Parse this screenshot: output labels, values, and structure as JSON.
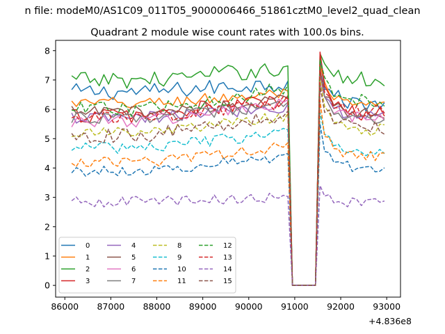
{
  "figure": {
    "suptitle": "n file: modeM0/AS1C09_011T05_9000006466_51861cztM0_level2_quad_clean",
    "x_offset_label": "+4.836e8"
  },
  "chart_data": {
    "type": "line",
    "title": "Quadrant 2 module wise count rates with 100.0s bins.",
    "xlabel": "",
    "ylabel": "",
    "xlim": [
      85800,
      93300
    ],
    "ylim": [
      -0.4,
      8.35
    ],
    "x_offset": 483600000,
    "xticks": [
      86000,
      87000,
      88000,
      89000,
      90000,
      91000,
      92000,
      93000
    ],
    "xtick_labels": [
      "86000",
      "87000",
      "88000",
      "89000",
      "90000",
      "91000",
      "92000",
      "93000"
    ],
    "yticks": [
      0,
      1,
      2,
      3,
      4,
      5,
      6,
      7,
      8
    ],
    "ytick_labels": [
      "0",
      "1",
      "2",
      "3",
      "4",
      "5",
      "6",
      "7",
      "8"
    ],
    "grid": false,
    "legend_position": "lower-left",
    "legend_columns": 4,
    "segment_1": {
      "x_start": 86150,
      "x_end": 90850,
      "step": 100
    },
    "segment_2": {
      "x_start": 91550,
      "x_end": 92950,
      "step": 100
    },
    "gap": {
      "x": [
        90950,
        91050,
        91150,
        91250,
        91350,
        91450
      ],
      "value": 0
    },
    "series": [
      {
        "name": "0",
        "color": "#1f77b4",
        "dash": "solid",
        "base": 6.6,
        "trend": 0.3,
        "amp": 0.28,
        "post_start": 7.7,
        "post_base": 6.2
      },
      {
        "name": "1",
        "color": "#ff7f0e",
        "dash": "solid",
        "base": 6.2,
        "trend": 0.35,
        "amp": 0.22,
        "post_start": 7.5,
        "post_base": 6.1
      },
      {
        "name": "2",
        "color": "#2ca02c",
        "dash": "solid",
        "base": 7.0,
        "trend": 0.4,
        "amp": 0.28,
        "post_start": 7.9,
        "post_base": 7.0
      },
      {
        "name": "3",
        "color": "#d62728",
        "dash": "solid",
        "base": 5.8,
        "trend": 0.55,
        "amp": 0.28,
        "post_start": 7.95,
        "post_base": 5.8
      },
      {
        "name": "4",
        "color": "#9467bd",
        "dash": "solid",
        "base": 5.7,
        "trend": 0.4,
        "amp": 0.22,
        "post_start": 7.3,
        "post_base": 5.8
      },
      {
        "name": "5",
        "color": "#8c564b",
        "dash": "solid",
        "base": 5.9,
        "trend": 0.4,
        "amp": 0.22,
        "post_start": 7.4,
        "post_base": 5.9
      },
      {
        "name": "6",
        "color": "#e377c2",
        "dash": "solid",
        "base": 5.6,
        "trend": 0.6,
        "amp": 0.22,
        "post_start": 6.9,
        "post_base": 5.7
      },
      {
        "name": "7",
        "color": "#7f7f7f",
        "dash": "solid",
        "base": 5.7,
        "trend": 0.45,
        "amp": 0.2,
        "post_start": 7.2,
        "post_base": 5.6
      },
      {
        "name": "8",
        "color": "#bcbd22",
        "dash": "dashed",
        "base": 5.2,
        "trend": 0.55,
        "amp": 0.2,
        "post_start": 7.0,
        "post_base": 5.3
      },
      {
        "name": "9",
        "color": "#17becf",
        "dash": "dashed",
        "base": 4.7,
        "trend": 0.5,
        "amp": 0.2,
        "post_start": 5.9,
        "post_base": 4.6
      },
      {
        "name": "10",
        "color": "#1f77b4",
        "dash": "dashed",
        "base": 3.9,
        "trend": 0.5,
        "amp": 0.18,
        "post_start": 5.5,
        "post_base": 4.0
      },
      {
        "name": "11",
        "color": "#ff7f0e",
        "dash": "dashed",
        "base": 4.2,
        "trend": 0.55,
        "amp": 0.18,
        "post_start": 6.3,
        "post_base": 4.4
      },
      {
        "name": "12",
        "color": "#2ca02c",
        "dash": "dashed",
        "base": 6.0,
        "trend": 0.7,
        "amp": 0.25,
        "post_start": 7.7,
        "post_base": 6.3
      },
      {
        "name": "13",
        "color": "#d62728",
        "dash": "dashed",
        "base": 5.7,
        "trend": 0.55,
        "amp": 0.22,
        "post_start": 7.3,
        "post_base": 5.9
      },
      {
        "name": "14",
        "color": "#9467bd",
        "dash": "dashed",
        "base": 2.85,
        "trend": 0.15,
        "amp": 0.18,
        "post_start": 3.4,
        "post_base": 2.8
      },
      {
        "name": "15",
        "color": "#8c564b",
        "dash": "dashed",
        "base": 5.1,
        "trend": 0.7,
        "amp": 0.25,
        "post_start": 6.8,
        "post_base": 5.4
      }
    ]
  }
}
